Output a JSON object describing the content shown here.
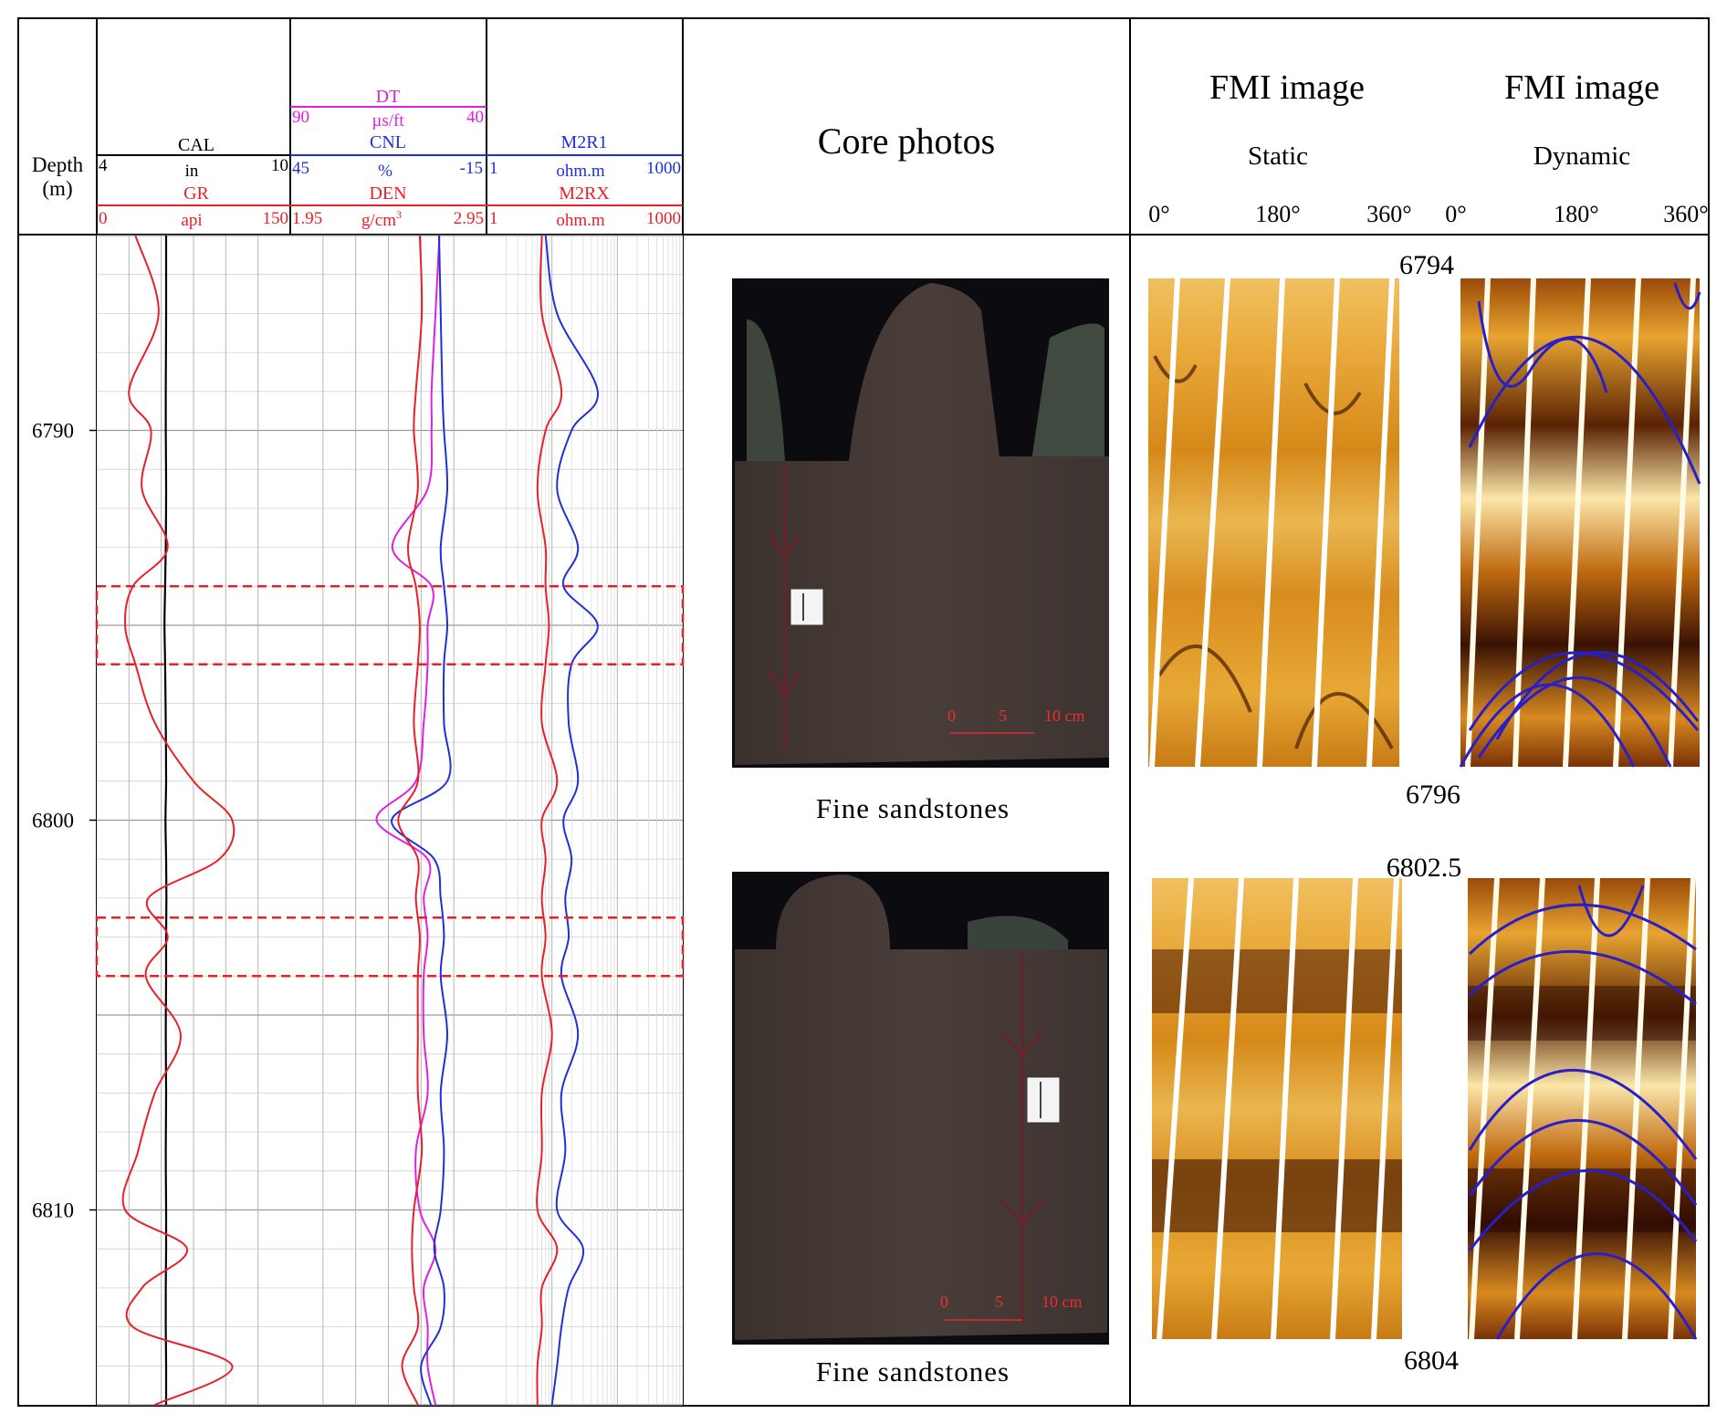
{
  "header": {
    "depth_label": "Depth",
    "depth_unit": "(m)",
    "track1": {
      "cal": {
        "name": "CAL",
        "min": "4",
        "unit": "in",
        "max": "10",
        "color": "#000000"
      },
      "gr": {
        "name": "GR",
        "min": "0",
        "unit": "api",
        "max": "150",
        "color": "#e8202a"
      }
    },
    "track2": {
      "dt": {
        "name": "DT",
        "min": "90",
        "unit": "µs/ft",
        "max": "40",
        "color": "#e020e0"
      },
      "cnl": {
        "name": "CNL",
        "min": "45",
        "unit": "%",
        "max": "-15",
        "color": "#2030d8"
      },
      "den": {
        "name": "DEN",
        "min": "1.95",
        "unit": "g/cm",
        "unit_sup": "3",
        "max": "2.95",
        "color": "#e8202a"
      }
    },
    "track3": {
      "m2r1": {
        "name": "M2R1",
        "min": "1",
        "unit": "ohm.m",
        "max": "1000",
        "color": "#2030d8"
      },
      "m2rx": {
        "name": "M2RX",
        "min": "1",
        "unit": "ohm.m",
        "max": "1000",
        "color": "#e8202a"
      }
    },
    "core_title": "Core photos",
    "fmi_static": {
      "title": "FMI image",
      "subtitle": "Static",
      "ticks": [
        "0°",
        "180°",
        "360°"
      ]
    },
    "fmi_dynamic": {
      "title": "FMI image",
      "subtitle": "Dynamic",
      "ticks": [
        "0°",
        "180°",
        "360°"
      ]
    }
  },
  "depth_axis": {
    "ticks": [
      "6790",
      "6800",
      "6810"
    ],
    "range": [
      6785,
      6815
    ]
  },
  "highlight_intervals": [
    [
      6794,
      6796
    ],
    [
      6802.5,
      6804
    ]
  ],
  "core_samples": [
    {
      "caption": "Fine sandstones",
      "scale": [
        "0",
        "5",
        "10 cm"
      ]
    },
    {
      "caption": "Fine sandstones",
      "scale": [
        "0",
        "5",
        "10 cm"
      ]
    }
  ],
  "fmi_intervals": [
    {
      "top": "6794",
      "bottom": "6796"
    },
    {
      "top": "6802.5",
      "bottom": "6804"
    }
  ],
  "chart_data": {
    "type": "line",
    "depths": [
      6785,
      6787,
      6789,
      6790,
      6791.5,
      6793,
      6794,
      6795,
      6796,
      6797.5,
      6799,
      6800,
      6801,
      6802,
      6803,
      6804,
      6805.5,
      6807,
      6808.5,
      6810,
      6811,
      6812,
      6813,
      6814,
      6815
    ],
    "series": [
      {
        "name": "CAL",
        "values": [
          6.15,
          6.15,
          6.14,
          6.14,
          6.15,
          6.14,
          6.12,
          6.1,
          6.12,
          6.14,
          6.15,
          6.13,
          6.15,
          6.16,
          6.15,
          6.15,
          6.14,
          6.15,
          6.14,
          6.15,
          6.15,
          6.14,
          6.14,
          6.15,
          6.15
        ]
      },
      {
        "name": "GR",
        "values": [
          30,
          48,
          25,
          42,
          35,
          55,
          28,
          22,
          30,
          45,
          75,
          105,
          95,
          40,
          55,
          38,
          65,
          45,
          32,
          22,
          70,
          35,
          28,
          105,
          45
        ]
      },
      {
        "name": "DT",
        "values": [
          52,
          53,
          54,
          54,
          55,
          64,
          54,
          55,
          55,
          56,
          58,
          68,
          55,
          56,
          55,
          56,
          56,
          55,
          58,
          57,
          53,
          56,
          55,
          55,
          53
        ]
      },
      {
        "name": "CNL",
        "values": [
          -0.5,
          -1,
          -1.5,
          -2,
          -3,
          -1,
          -2,
          -3,
          -2,
          -2,
          -3,
          14,
          1,
          -1,
          -2,
          -1,
          -3,
          -1,
          -2,
          -1,
          1,
          -2,
          -1,
          5,
          2
        ]
      },
      {
        "name": "DEN",
        "values": [
          2.61,
          2.62,
          2.59,
          2.58,
          2.6,
          2.55,
          2.59,
          2.61,
          2.6,
          2.58,
          2.6,
          2.5,
          2.6,
          2.59,
          2.61,
          2.6,
          2.6,
          2.6,
          2.62,
          2.58,
          2.57,
          2.58,
          2.6,
          2.52,
          2.6
        ]
      },
      {
        "name": "M2R1",
        "values": [
          8,
          12,
          50,
          20,
          12,
          25,
          15,
          50,
          20,
          18,
          25,
          15,
          20,
          16,
          18,
          14,
          25,
          14,
          16,
          12,
          30,
          18,
          14,
          12,
          10
        ]
      },
      {
        "name": "M2RX",
        "values": [
          7,
          7,
          14,
          8,
          6,
          8,
          8,
          9,
          8,
          7,
          12,
          7,
          8,
          7,
          8,
          7,
          10,
          7,
          7,
          6,
          12,
          7,
          7,
          6,
          6
        ]
      }
    ]
  }
}
